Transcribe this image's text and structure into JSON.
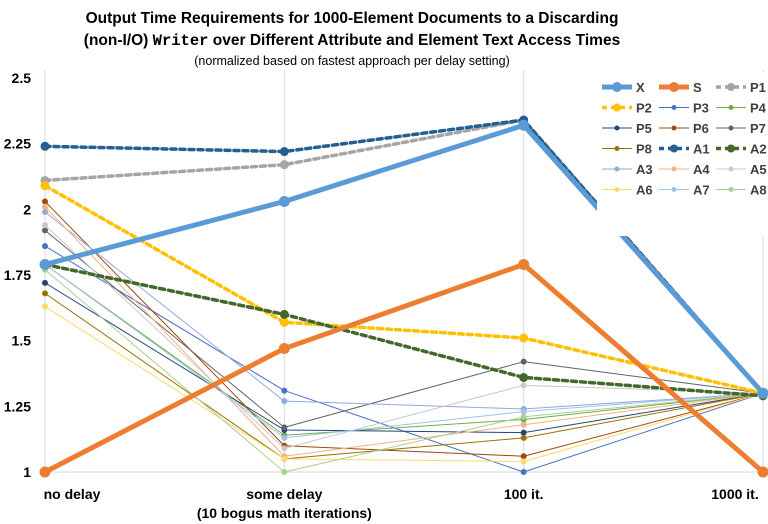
{
  "chart_data": {
    "type": "line",
    "title_line1": "Output Time Requirements for 1000-Element Documents to a Discarding",
    "title_line2_a": "(non-I/O) ",
    "title_line2_code": "Writer",
    "title_line2_b": " over Different Attribute and Element Text Access Times",
    "subtitle": "(normalized based on fastest approach per delay setting)",
    "categories": [
      "no delay",
      "some delay",
      "100 it.",
      "1000 it."
    ],
    "category_sublabels": [
      "",
      "(10 bogus math iterations)",
      "",
      ""
    ],
    "ylim": [
      1,
      2.5
    ],
    "yticks": [
      1,
      1.25,
      1.5,
      1.75,
      2,
      2.25,
      2.5
    ],
    "ytick_labels": [
      "1",
      "1.25",
      "1.5",
      "1.75",
      "2",
      "2.25",
      "2.5"
    ],
    "grid": "vertical",
    "legend_position": "top-right",
    "series": [
      {
        "name": "X",
        "color": "#5b9bd5",
        "style": "solid",
        "width": 5,
        "marker": 9,
        "values": [
          1.79,
          2.03,
          2.32,
          1.3
        ]
      },
      {
        "name": "S",
        "color": "#ed7d31",
        "style": "solid",
        "width": 5,
        "marker": 9,
        "values": [
          1.0,
          1.47,
          1.79,
          1.0
        ]
      },
      {
        "name": "P1",
        "color": "#a5a5a5",
        "style": "dashed",
        "width": 3.5,
        "marker": 7,
        "values": [
          2.11,
          2.17,
          2.34,
          1.3
        ]
      },
      {
        "name": "P2",
        "color": "#ffc000",
        "style": "dashed",
        "width": 3.5,
        "marker": 7,
        "values": [
          2.09,
          1.57,
          1.51,
          1.3
        ]
      },
      {
        "name": "P3",
        "color": "#4472c4",
        "style": "solid",
        "width": 1,
        "marker": 4,
        "values": [
          1.86,
          1.31,
          1.0,
          1.3
        ]
      },
      {
        "name": "P4",
        "color": "#70ad47",
        "style": "solid",
        "width": 1,
        "marker": 4,
        "values": [
          1.79,
          1.14,
          1.2,
          1.3
        ]
      },
      {
        "name": "P5",
        "color": "#264478",
        "style": "solid",
        "width": 1,
        "marker": 4,
        "values": [
          1.72,
          1.16,
          1.15,
          1.3
        ]
      },
      {
        "name": "P6",
        "color": "#9e480e",
        "style": "solid",
        "width": 1,
        "marker": 4,
        "values": [
          2.03,
          1.1,
          1.06,
          1.3
        ]
      },
      {
        "name": "P7",
        "color": "#636363",
        "style": "solid",
        "width": 1,
        "marker": 4,
        "values": [
          1.92,
          1.17,
          1.42,
          1.3
        ]
      },
      {
        "name": "P8",
        "color": "#997300",
        "style": "solid",
        "width": 1,
        "marker": 4,
        "values": [
          1.68,
          1.05,
          1.13,
          1.3
        ]
      },
      {
        "name": "A1",
        "color": "#255e91",
        "style": "dashed",
        "width": 3.5,
        "marker": 7,
        "values": [
          2.24,
          2.22,
          2.34,
          1.3
        ]
      },
      {
        "name": "A2",
        "color": "#43682b",
        "style": "dashed",
        "width": 3.5,
        "marker": 7,
        "values": [
          1.79,
          1.6,
          1.36,
          1.29
        ]
      },
      {
        "name": "A3",
        "color": "#8faadc",
        "style": "solid",
        "width": 1,
        "marker": 4,
        "values": [
          1.99,
          1.27,
          1.24,
          1.3
        ]
      },
      {
        "name": "A4",
        "color": "#f4b183",
        "style": "solid",
        "width": 1,
        "marker": 4,
        "values": [
          2.01,
          1.06,
          1.18,
          1.3
        ]
      },
      {
        "name": "A5",
        "color": "#c9c9c9",
        "style": "solid",
        "width": 1,
        "marker": 4,
        "values": [
          1.94,
          1.09,
          1.33,
          1.3
        ]
      },
      {
        "name": "A6",
        "color": "#ffd966",
        "style": "solid",
        "width": 1,
        "marker": 4,
        "values": [
          1.63,
          1.05,
          1.04,
          1.3
        ]
      },
      {
        "name": "A7",
        "color": "#9dc3e6",
        "style": "solid",
        "width": 1,
        "marker": 4,
        "values": [
          1.79,
          1.13,
          1.23,
          1.3
        ]
      },
      {
        "name": "A8",
        "color": "#a9d18e",
        "style": "solid",
        "width": 1,
        "marker": 4,
        "values": [
          1.77,
          1.0,
          1.21,
          1.3
        ]
      }
    ]
  }
}
